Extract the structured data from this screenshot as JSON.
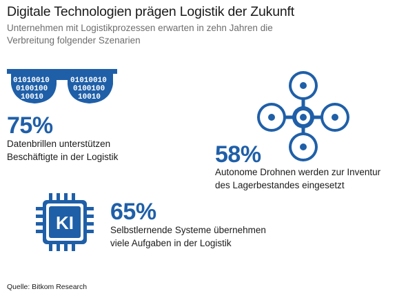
{
  "header": {
    "title": "Digitale Technologien prägen Logistik der Zukunft",
    "subtitle": "Unternehmen mit Logistikprozessen erwarten in zehn Jahren die Verbreitung folgender Szenarien"
  },
  "scenarios": [
    {
      "icon": "smart-glasses-icon",
      "glasses_binary": [
        "01010010",
        "0100100",
        "10010"
      ],
      "value": "75%",
      "line1": "Datenbrillen unterstützen",
      "line2": "Beschäftigte in der Logistik"
    },
    {
      "icon": "drone-icon",
      "value": "58%",
      "line1": "Autonome Drohnen werden zur Inventur",
      "line2": "des Lagerbestandes eingesetzt"
    },
    {
      "icon": "ai-chip-icon",
      "chip_label": "KI",
      "value": "65%",
      "line1": "Selbstlernende Systeme übernehmen",
      "line2": "viele Aufgaben in der Logistik"
    }
  ],
  "source": "Quelle: Bitkom Research",
  "colors": {
    "accent": "#1f5fa8",
    "text": "#1a1a1a",
    "subtitle": "#6d6d6d"
  }
}
